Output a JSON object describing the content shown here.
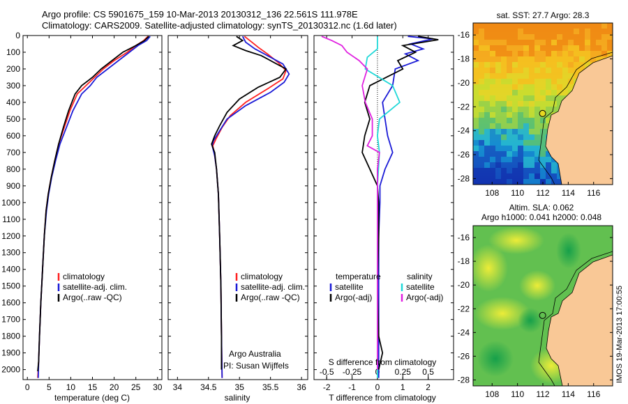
{
  "header": {
    "line1": "Argo profile: CS 5901675_159 10-Mar-2013 20130312_136 22.561S 111.978E",
    "line2": "Climatology: CARS2009. Satellite-adjusted climatology: synTS_20130312.nc (1.6d later)"
  },
  "stamp": "IMOS 19-Mar-2013 17:00:55",
  "colors": {
    "climatology": "#ff2020",
    "satellite": "#1a1ad6",
    "argo": "#000000",
    "sal_satellite": "#20d8d8",
    "sal_argo": "#e020e0",
    "land": "#f9c896"
  },
  "chart_data": [
    {
      "type": "line",
      "panel": "temperature",
      "xlabel": "temperature (deg C)",
      "ylabel": "",
      "xlim": [
        -1,
        31
      ],
      "ylim": [
        2060,
        0
      ],
      "xticks": [
        0,
        5,
        10,
        15,
        20,
        25,
        30
      ],
      "yticks": [
        0,
        100,
        200,
        300,
        400,
        500,
        600,
        700,
        800,
        900,
        1000,
        1100,
        1200,
        1300,
        1400,
        1500,
        1600,
        1700,
        1800,
        1900,
        2000
      ],
      "legend": [
        "climatology",
        "satellite-adj. clim.",
        "Argo(..raw -QC)"
      ],
      "series": [
        {
          "name": "climatology",
          "color": "#ff2020",
          "points": [
            [
              27.8,
              5
            ],
            [
              26.8,
              30
            ],
            [
              25.0,
              60
            ],
            [
              23.0,
              100
            ],
            [
              20.0,
              150
            ],
            [
              17.5,
              200
            ],
            [
              15.5,
              250
            ],
            [
              13.5,
              300
            ],
            [
              11.5,
              350
            ],
            [
              9.8,
              450
            ],
            [
              8.5,
              550
            ],
            [
              7.2,
              650
            ],
            [
              6.3,
              750
            ],
            [
              5.5,
              850
            ],
            [
              4.8,
              950
            ],
            [
              4.3,
              1050
            ],
            [
              3.9,
              1200
            ],
            [
              3.5,
              1400
            ],
            [
              3.1,
              1600
            ],
            [
              2.8,
              1800
            ],
            [
              2.6,
              1950
            ],
            [
              2.4,
              2050
            ]
          ]
        },
        {
          "name": "satellite-adj. clim.",
          "color": "#1a1ad6",
          "points": [
            [
              28.3,
              5
            ],
            [
              27.5,
              30
            ],
            [
              25.5,
              60
            ],
            [
              23.5,
              100
            ],
            [
              21.0,
              150
            ],
            [
              18.5,
              200
            ],
            [
              16.0,
              250
            ],
            [
              14.5,
              300
            ],
            [
              12.5,
              350
            ],
            [
              10.5,
              450
            ],
            [
              9.0,
              550
            ],
            [
              7.5,
              650
            ],
            [
              6.5,
              750
            ],
            [
              5.6,
              850
            ],
            [
              4.9,
              950
            ],
            [
              4.4,
              1050
            ],
            [
              3.9,
              1200
            ],
            [
              3.5,
              1400
            ],
            [
              3.1,
              1600
            ],
            [
              2.8,
              1800
            ],
            [
              2.6,
              1950
            ],
            [
              2.5,
              2050
            ]
          ]
        },
        {
          "name": "Argo(..raw -QC)",
          "color": "#000000",
          "points": [
            [
              28.0,
              5
            ],
            [
              27.0,
              30
            ],
            [
              25.0,
              60
            ],
            [
              22.0,
              100
            ],
            [
              19.5,
              150
            ],
            [
              17.0,
              200
            ],
            [
              15.0,
              250
            ],
            [
              12.5,
              300
            ],
            [
              11.0,
              350
            ],
            [
              9.5,
              450
            ],
            [
              8.3,
              550
            ],
            [
              7.2,
              650
            ],
            [
              6.3,
              750
            ],
            [
              5.5,
              850
            ],
            [
              4.8,
              950
            ],
            [
              4.3,
              1050
            ],
            [
              3.9,
              1200
            ],
            [
              3.5,
              1400
            ],
            [
              3.1,
              1600
            ],
            [
              2.8,
              1800
            ],
            [
              2.6,
              1950
            ],
            [
              2.4,
              2010
            ]
          ]
        }
      ]
    },
    {
      "type": "line",
      "panel": "salinity",
      "xlabel": "salinity",
      "ylabel": "",
      "xlim": [
        33.85,
        36.1
      ],
      "ylim": [
        2060,
        0
      ],
      "xticks": [
        34,
        34.5,
        35,
        35.5,
        36
      ],
      "legend": [
        "climatology",
        "satellite-adj. clim.",
        "Argo(..raw -QC)"
      ],
      "annotations": [
        "Argo Australia",
        "PI: Susan Wijffels"
      ],
      "series": [
        {
          "name": "climatology",
          "color": "#ff2020",
          "points": [
            [
              35.08,
              5
            ],
            [
              35.2,
              40
            ],
            [
              35.3,
              70
            ],
            [
              35.45,
              110
            ],
            [
              35.62,
              160
            ],
            [
              35.75,
              210
            ],
            [
              35.7,
              260
            ],
            [
              35.45,
              320
            ],
            [
              35.1,
              400
            ],
            [
              34.85,
              480
            ],
            [
              34.72,
              550
            ],
            [
              34.62,
              620
            ],
            [
              34.57,
              660
            ],
            [
              34.6,
              720
            ],
            [
              34.63,
              800
            ],
            [
              34.66,
              950
            ],
            [
              34.68,
              1200
            ],
            [
              34.7,
              1500
            ],
            [
              34.71,
              1800
            ],
            [
              34.72,
              2050
            ]
          ]
        },
        {
          "name": "satellite-adj. clim.",
          "color": "#1a1ad6",
          "points": [
            [
              35.05,
              5
            ],
            [
              35.1,
              40
            ],
            [
              35.25,
              80
            ],
            [
              35.45,
              120
            ],
            [
              35.7,
              170
            ],
            [
              35.8,
              230
            ],
            [
              35.72,
              280
            ],
            [
              35.5,
              340
            ],
            [
              35.1,
              420
            ],
            [
              34.8,
              500
            ],
            [
              34.68,
              570
            ],
            [
              34.58,
              630
            ],
            [
              34.56,
              660
            ],
            [
              34.6,
              720
            ],
            [
              34.63,
              800
            ],
            [
              34.66,
              950
            ],
            [
              34.68,
              1200
            ],
            [
              34.7,
              1500
            ],
            [
              34.71,
              1800
            ],
            [
              34.72,
              2050
            ]
          ]
        },
        {
          "name": "Argo(..raw -QC)",
          "color": "#000000",
          "points": [
            [
              34.95,
              5
            ],
            [
              35.05,
              30
            ],
            [
              34.9,
              60
            ],
            [
              35.1,
              90
            ],
            [
              35.35,
              120
            ],
            [
              35.55,
              160
            ],
            [
              35.75,
              200
            ],
            [
              35.65,
              250
            ],
            [
              35.3,
              310
            ],
            [
              35.0,
              380
            ],
            [
              34.8,
              460
            ],
            [
              34.68,
              540
            ],
            [
              34.6,
              600
            ],
            [
              34.55,
              650
            ],
            [
              34.6,
              700
            ],
            [
              34.63,
              800
            ],
            [
              34.66,
              950
            ],
            [
              34.68,
              1200
            ],
            [
              34.7,
              1500
            ],
            [
              34.71,
              1800
            ],
            [
              34.71,
              2000
            ]
          ]
        }
      ]
    },
    {
      "type": "line",
      "panel": "differences",
      "xlabel": "T difference from climatology",
      "xlabel_top": "S difference from climatology",
      "xlim": [
        -2.5,
        3
      ],
      "ylim": [
        2060,
        0
      ],
      "xticks": [
        -2,
        -1,
        0,
        1,
        2
      ],
      "xticklabels": [
        "-2",
        "-1",
        "0",
        "1",
        "2"
      ],
      "sticks": [
        -0.5,
        -0.25,
        0,
        0.25,
        0.5
      ],
      "sticklabels": [
        "-0.5",
        "-0.25",
        "0",
        "0.25",
        "0.5"
      ],
      "legend_temperature": {
        "title": "temperature",
        "items": [
          "satellite",
          "Argo(-adj)"
        ]
      },
      "legend_salinity": {
        "title": "salinity",
        "items": [
          "satellite",
          "Argo(-adj)"
        ]
      },
      "series": [
        {
          "name": "satellite",
          "group": "temperature",
          "color": "#1a1ad6",
          "points": [
            [
              1.2,
              5
            ],
            [
              2.2,
              20
            ],
            [
              1.3,
              50
            ],
            [
              1.8,
              80
            ],
            [
              1.1,
              110
            ],
            [
              1.6,
              150
            ],
            [
              0.7,
              200
            ],
            [
              0.6,
              300
            ],
            [
              0.2,
              400
            ],
            [
              0.3,
              500
            ],
            [
              0.4,
              600
            ],
            [
              0.6,
              700
            ],
            [
              0.3,
              800
            ],
            [
              0.1,
              900
            ],
            [
              0.1,
              1000
            ],
            [
              0.05,
              1200
            ],
            [
              0.05,
              1500
            ],
            [
              0.05,
              1800
            ],
            [
              0.05,
              2050
            ]
          ]
        },
        {
          "name": "Argo(-adj)",
          "group": "temperature",
          "color": "#000000",
          "points": [
            [
              1.6,
              5
            ],
            [
              2.4,
              25
            ],
            [
              1.0,
              60
            ],
            [
              1.5,
              100
            ],
            [
              0.8,
              150
            ],
            [
              1.0,
              200
            ],
            [
              -0.3,
              300
            ],
            [
              -0.5,
              400
            ],
            [
              -0.3,
              500
            ],
            [
              -0.5,
              600
            ],
            [
              -0.6,
              700
            ],
            [
              -0.3,
              800
            ],
            [
              0.0,
              900
            ],
            [
              0.05,
              1000
            ],
            [
              0.05,
              1200
            ],
            [
              0.0,
              1500
            ],
            [
              0.05,
              1800
            ],
            [
              0.2,
              1900
            ],
            [
              0.05,
              2000
            ]
          ]
        },
        {
          "name": "satellite",
          "group": "salinity",
          "color": "#20d8d8",
          "points": [
            [
              0.0,
              5
            ],
            [
              0.0,
              80
            ],
            [
              -0.1,
              130
            ],
            [
              -0.12,
              200
            ],
            [
              0.15,
              300
            ],
            [
              0.22,
              400
            ],
            [
              0.02,
              500
            ],
            [
              0.0,
              600
            ],
            [
              0.02,
              700
            ],
            [
              0.0,
              900
            ],
            [
              0.0,
              1200
            ],
            [
              0.0,
              1500
            ],
            [
              0.0,
              1800
            ],
            [
              0.0,
              2050
            ]
          ]
        },
        {
          "name": "Argo(-adj)",
          "group": "salinity",
          "color": "#e020e0",
          "points": [
            [
              -0.55,
              5
            ],
            [
              -0.45,
              30
            ],
            [
              -0.35,
              60
            ],
            [
              -0.3,
              100
            ],
            [
              -0.18,
              150
            ],
            [
              -0.1,
              200
            ],
            [
              -0.15,
              300
            ],
            [
              -0.12,
              400
            ],
            [
              -0.05,
              500
            ],
            [
              -0.05,
              600
            ],
            [
              -0.1,
              660
            ],
            [
              0.02,
              700
            ],
            [
              0.0,
              800
            ],
            [
              0.0,
              1000
            ],
            [
              0.0,
              1500
            ],
            [
              0.0,
              2000
            ]
          ]
        }
      ]
    },
    {
      "type": "heatmap",
      "panel": "sst-map",
      "title": "sat. SST: 27.7 Argo: 28.3",
      "xticks": [
        108,
        110,
        112,
        114,
        116
      ],
      "yticks": [
        -16,
        -18,
        -20,
        -22,
        -24,
        -26,
        -28
      ],
      "xlim": [
        106.5,
        117.5
      ],
      "ylim": [
        -28.5,
        -15
      ],
      "argo_position": {
        "lon": 111.978,
        "lat": -22.561
      }
    },
    {
      "type": "heatmap",
      "panel": "sla-map",
      "title_line1": "Altim. SLA: 0.062",
      "title_line2": "Argo h1000: 0.041 h2000: 0.048",
      "xticks": [
        108,
        110,
        112,
        114,
        116
      ],
      "yticks": [
        -16,
        -18,
        -20,
        -22,
        -24,
        -26,
        -28
      ],
      "xlim": [
        106.5,
        117.5
      ],
      "ylim": [
        -28.5,
        -15
      ],
      "argo_position": {
        "lon": 111.978,
        "lat": -22.561
      }
    }
  ]
}
